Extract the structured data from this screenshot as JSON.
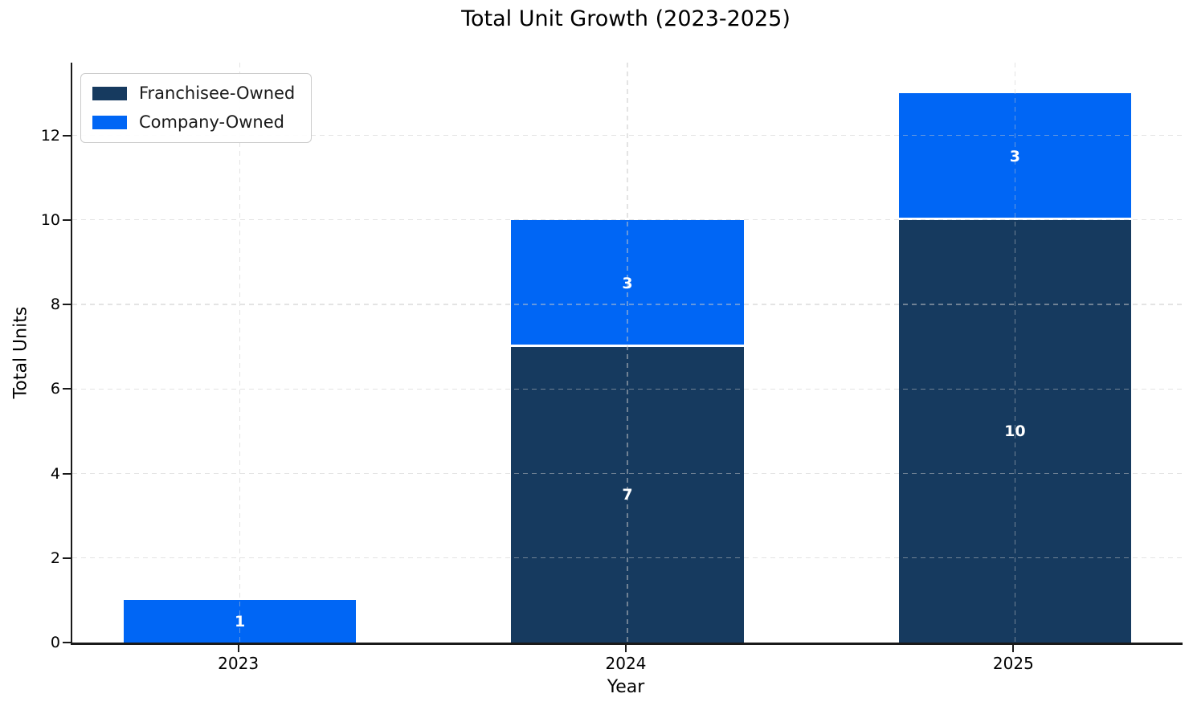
{
  "chart_data": {
    "type": "bar",
    "stacked": true,
    "title": "Total Unit Growth (2023-2025)",
    "xlabel": "Year",
    "ylabel": "Total Units",
    "categories": [
      "2023",
      "2024",
      "2025"
    ],
    "series": [
      {
        "name": "Franchisee-Owned",
        "color": "#163A5F",
        "values": [
          0,
          7,
          10
        ]
      },
      {
        "name": "Company-Owned",
        "color": "#0066F5",
        "values": [
          1,
          3,
          3
        ]
      }
    ],
    "totals": [
      1,
      10,
      13
    ],
    "yticks": [
      0,
      2,
      4,
      6,
      8,
      10,
      12
    ],
    "ylim": [
      0,
      13.72
    ],
    "bar_value_labels": true,
    "bar_label_color": "#ffffff",
    "grid": "dashed, horizontal and vertical, drawn over bars",
    "legend_position": "upper left",
    "segment_edge_color": "#ffffff"
  }
}
